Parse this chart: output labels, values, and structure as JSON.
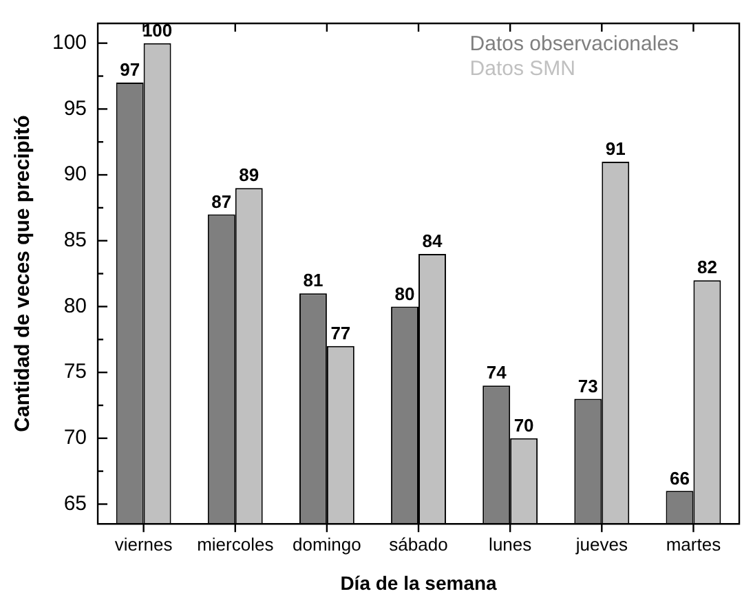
{
  "chart_data": {
    "type": "bar",
    "xlabel": "Día de la semana",
    "ylabel": "Cantidad de veces que precipitó",
    "categories": [
      "viernes",
      "miercoles",
      "domingo",
      "sábado",
      "lunes",
      "jueves",
      "martes"
    ],
    "series": [
      {
        "name": "Datos observacionales",
        "color": "#7f7f7f",
        "values": [
          97,
          87,
          81,
          80,
          74,
          73,
          66
        ]
      },
      {
        "name": "Datos SMN",
        "color": "#c0c0c0",
        "values": [
          100,
          89,
          77,
          84,
          70,
          91,
          82
        ]
      }
    ],
    "ylim": [
      63.5,
      101.5
    ],
    "yticks": [
      65,
      {
        "value": 67.5,
        "label": null
      },
      70,
      {
        "value": 72.5,
        "label": null
      },
      75,
      {
        "value": 77.5,
        "label": null
      },
      80,
      {
        "value": 82.5,
        "label": null
      },
      85,
      {
        "value": 87.5,
        "label": null
      },
      90,
      {
        "value": 92.5,
        "label": null
      },
      95,
      {
        "value": 97.5,
        "label": null
      },
      100
    ],
    "data_labels": true,
    "legend": "top right",
    "grid": false
  }
}
